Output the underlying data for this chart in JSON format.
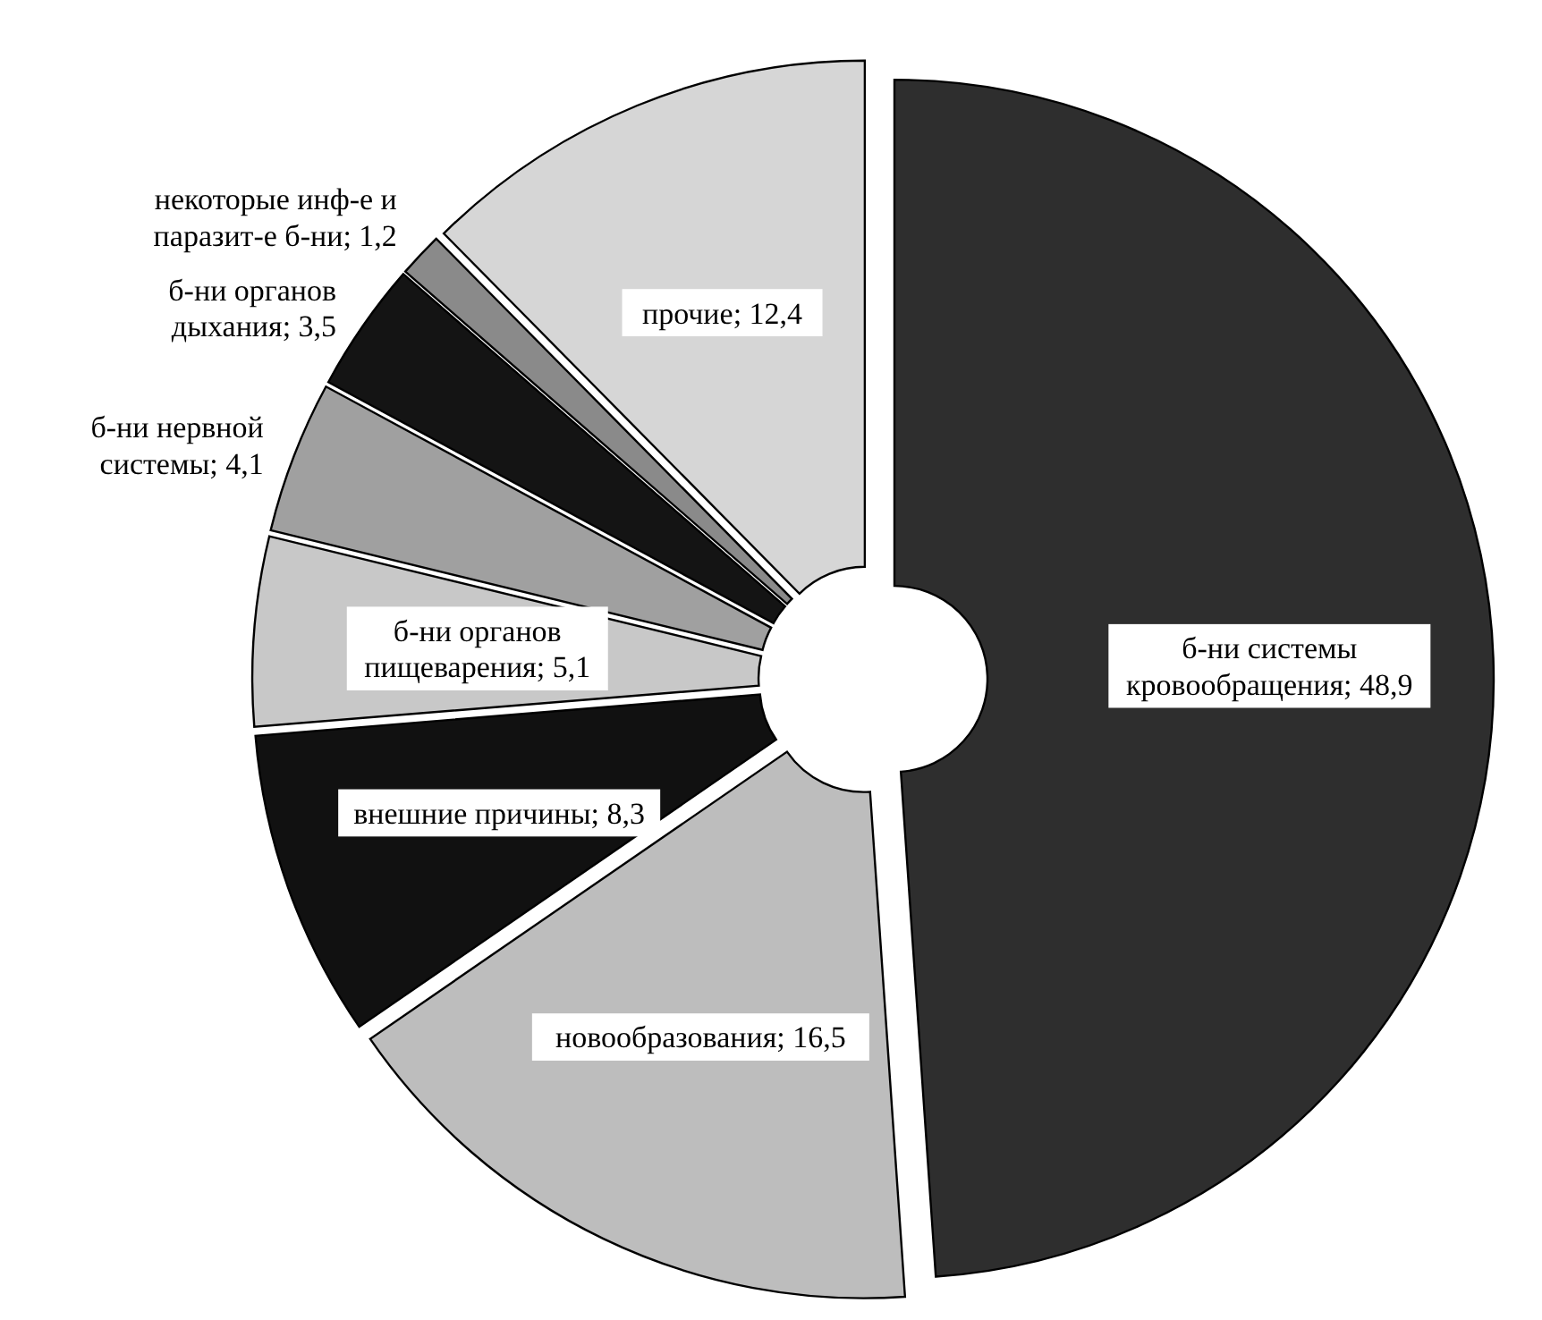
{
  "chart_data": {
    "type": "donut",
    "categories": [
      "б-ни системы кровообращения",
      "новообразования",
      "внешние причины",
      "б-ни органов пищеварения",
      "б-ни нервной системы",
      "б-ни органов дыхания",
      "некоторые инф-е и паразит-е б-ни",
      "прочие"
    ],
    "values": [
      48.9,
      16.5,
      8.3,
      5.1,
      4.1,
      3.5,
      1.2,
      12.4
    ],
    "colors": [
      "#2e2e2e",
      "#bdbdbd",
      "#111111",
      "#c8c8c8",
      "#a0a0a0",
      "#141414",
      "#8a8a8a",
      "#d6d6d6"
    ],
    "value_labels": [
      "48,9",
      "16,5",
      "8,3",
      "5,1",
      "4,1",
      "3,5",
      "1,2",
      "12,4"
    ]
  }
}
